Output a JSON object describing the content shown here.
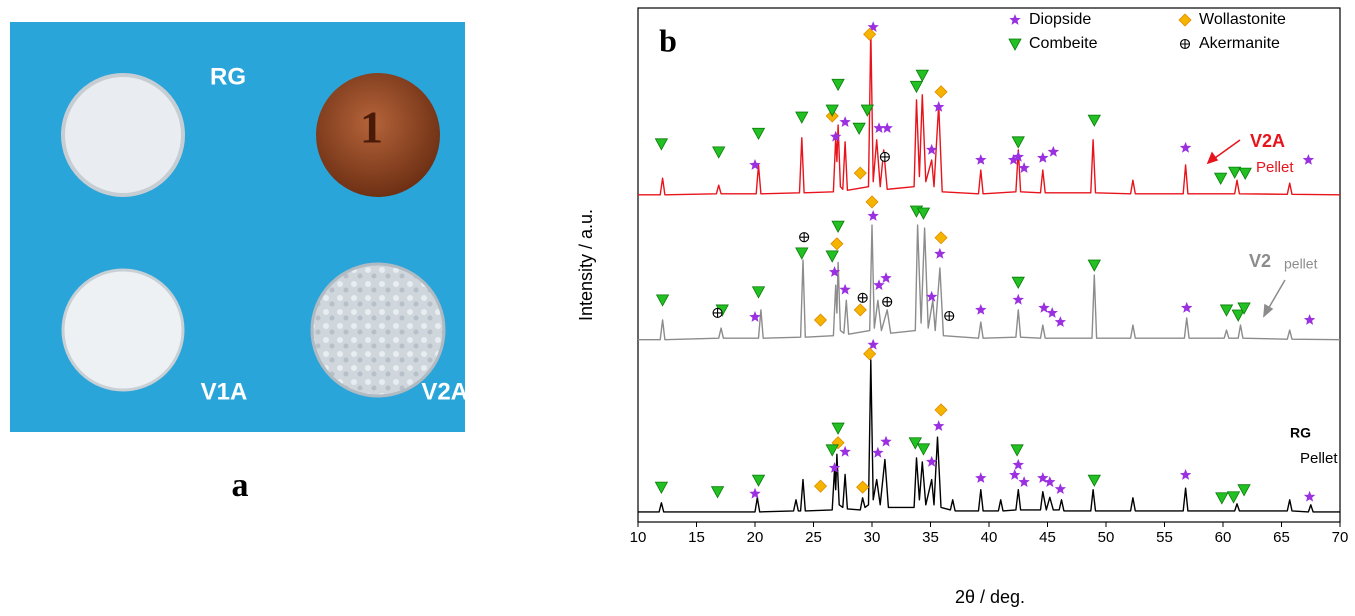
{
  "panel_a": {
    "label": "a",
    "photo_labels": [
      "RG",
      "V1A",
      "V2A"
    ]
  },
  "chart_data": {
    "type": "line",
    "panel_label": "b",
    "xlabel": "2θ / deg.",
    "ylabel": "Intensity / a.u.",
    "xlim": [
      10,
      70
    ],
    "xticks": [
      10,
      15,
      20,
      25,
      30,
      35,
      40,
      45,
      50,
      55,
      60,
      65,
      70
    ],
    "ylim": [
      -1.4,
      100.4
    ],
    "legend": "top right",
    "traces": [
      {
        "label": "V2A",
        "sublabel": "Pellet",
        "color": "#e8141c",
        "x": [
          10,
          11.9,
          12.1,
          12.3,
          16.7,
          16.9,
          17.1,
          20.1,
          20.3,
          20.5,
          23.8,
          24.0,
          24.2,
          26.7,
          26.9,
          27.0,
          27.1,
          27.3,
          27.5,
          27.7,
          27.9,
          29.7,
          29.9,
          30.1,
          30.4,
          30.7,
          31.0,
          31.3,
          33.6,
          33.8,
          34.05,
          34.3,
          34.6,
          35.1,
          35.3,
          35.7,
          36.0,
          39.1,
          39.3,
          39.5,
          42.3,
          42.5,
          42.7,
          44.4,
          44.6,
          44.8,
          48.7,
          48.9,
          49.1,
          52.1,
          52.3,
          52.5,
          56.6,
          56.8,
          57.0,
          61.0,
          61.2,
          61.4,
          65.5,
          65.7,
          65.9,
          70
        ],
        "values": [
          63.4,
          63.4,
          66.7,
          63.4,
          63.6,
          65.3,
          63.6,
          63.6,
          69.3,
          63.6,
          63.8,
          74.7,
          63.8,
          64,
          74.7,
          70,
          77.2,
          65,
          64.5,
          73.9,
          64.3,
          65,
          96,
          66,
          74.3,
          65,
          72.3,
          64.5,
          65,
          82.2,
          67,
          83.2,
          66,
          70.3,
          65,
          81.2,
          64,
          63.6,
          68.3,
          63.6,
          64,
          72.3,
          64,
          63.8,
          68.3,
          63.8,
          63.8,
          74.3,
          63.8,
          63.6,
          66.3,
          63.6,
          63.6,
          69.3,
          63.6,
          63.6,
          66.3,
          63.6,
          63.5,
          65.7,
          63.5,
          63.4
        ]
      },
      {
        "label": "V2",
        "sublabel": "pellet",
        "color": "#8c8c8c",
        "x": [
          10,
          11.9,
          12.1,
          12.3,
          16.9,
          17.1,
          17.3,
          20.3,
          20.5,
          20.7,
          23.9,
          24.1,
          24.3,
          26.7,
          26.9,
          27.0,
          27.1,
          27.3,
          27.6,
          27.8,
          28.0,
          29.8,
          30.0,
          30.2,
          30.5,
          30.8,
          31.3,
          31.6,
          33.7,
          33.9,
          34.2,
          34.5,
          34.8,
          35.2,
          35.4,
          35.8,
          36.1,
          39.1,
          39.3,
          39.5,
          42.3,
          42.5,
          42.7,
          44.4,
          44.6,
          44.8,
          48.8,
          49.0,
          49.2,
          52.1,
          52.3,
          52.5,
          56.7,
          56.9,
          57.1,
          60.1,
          60.3,
          60.5,
          61.3,
          61.5,
          61.7,
          65.5,
          65.7,
          65.9,
          70
        ],
        "values": [
          34.7,
          34.7,
          38.6,
          34.7,
          35,
          37,
          35,
          35,
          40.6,
          35,
          35.2,
          50.5,
          35.2,
          35.5,
          45.5,
          40,
          50,
          36.5,
          36,
          42.5,
          35.8,
          36.5,
          57.4,
          37,
          42.5,
          36.5,
          40.6,
          36,
          36.5,
          57.4,
          38,
          56.8,
          37,
          42.5,
          36.5,
          48.9,
          35.5,
          35,
          38.2,
          35,
          35.2,
          40.6,
          35.2,
          35,
          37.6,
          35,
          35,
          47.5,
          35,
          35,
          37.6,
          35,
          35,
          39,
          35,
          35,
          36.6,
          35,
          35,
          37.6,
          35,
          34.8,
          36.6,
          34.8,
          34.7
        ]
      },
      {
        "label": "RG",
        "sublabel": "Pellet",
        "color": "#000000",
        "x": [
          10,
          11.8,
          12,
          12.2,
          20,
          20.2,
          20.4,
          23.3,
          23.5,
          23.7,
          23.9,
          24.1,
          24.3,
          26.6,
          26.8,
          26.9,
          27.0,
          27.2,
          27.5,
          27.7,
          27.9,
          29.0,
          29.2,
          29.4,
          29.7,
          29.9,
          30.1,
          30.4,
          30.7,
          31.1,
          31.4,
          33.6,
          33.8,
          34.05,
          34.3,
          34.6,
          35.1,
          35.3,
          35.6,
          35.9,
          36.7,
          36.9,
          37.1,
          39.1,
          39.3,
          39.5,
          40.8,
          41.0,
          41.2,
          42.3,
          42.5,
          42.7,
          44.4,
          44.6,
          44.9,
          45.2,
          45.5,
          46.0,
          46.2,
          46.4,
          48.7,
          48.9,
          49.1,
          52.1,
          52.3,
          52.5,
          56.6,
          56.8,
          57.0,
          61.0,
          61.2,
          61.4,
          65.5,
          65.7,
          65.9,
          67.3,
          67.5,
          67.7,
          70
        ],
        "values": [
          0.6,
          0.6,
          2.4,
          0.6,
          0.6,
          3.4,
          0.6,
          0.8,
          3,
          0.8,
          0.8,
          7,
          0.8,
          1,
          9.3,
          5,
          12,
          2,
          1.5,
          8,
          1.2,
          1,
          3.4,
          1.5,
          2,
          30.7,
          3,
          7,
          2,
          11,
          1.5,
          1.5,
          11.3,
          3,
          10.5,
          2,
          7,
          2,
          15.4,
          1.5,
          1,
          3,
          0.8,
          0.8,
          5,
          0.8,
          0.8,
          3,
          0.8,
          1,
          5,
          1,
          1,
          4.6,
          1,
          3.5,
          1,
          1,
          3,
          0.8,
          0.8,
          5,
          0.8,
          0.8,
          3.4,
          0.8,
          0.8,
          5.3,
          0.8,
          0.8,
          2.2,
          0.8,
          0.8,
          3,
          0.8,
          0.6,
          2,
          0.6,
          0.6
        ]
      }
    ],
    "series": [
      {
        "name": "Diopside",
        "marker": "star",
        "color": "#9b30e0",
        "x": [
          20,
          26.9,
          27.7,
          30.1,
          30.6,
          31.3,
          35.1,
          35.7,
          39.3,
          42.1,
          42.5,
          43,
          44.6,
          45.5,
          56.8,
          67.3,
          20,
          26.8,
          27.7,
          30.1,
          30.6,
          31.2,
          35.1,
          35.8,
          39.3,
          42.5,
          44.7,
          45.4,
          46.1,
          56.9,
          67.4,
          20,
          26.8,
          27.7,
          30.1,
          30.5,
          31.2,
          35.1,
          35.7,
          39.3,
          42.2,
          42.5,
          43,
          44.6,
          45.2,
          46.1,
          56.8,
          67.4
        ],
        "values": [
          69.3,
          74.9,
          77.8,
          96.6,
          76.6,
          76.6,
          72.3,
          80.8,
          70.3,
          70.3,
          70.9,
          68.7,
          70.7,
          71.9,
          72.7,
          70.3,
          39.2,
          48.1,
          44.6,
          59.2,
          45.5,
          46.9,
          43.2,
          51.7,
          40.6,
          42.6,
          41,
          40,
          38.2,
          41,
          38.6,
          4.2,
          9.3,
          12.5,
          33.7,
          12.3,
          14.5,
          10.5,
          17.6,
          7.3,
          7.9,
          9.9,
          6.5,
          7.3,
          6.5,
          5.1,
          7.9,
          3.6
        ]
      },
      {
        "name": "Wollastonite",
        "marker": "diamond",
        "color": "#f5b400",
        "x": [
          26.6,
          29,
          29.8,
          35.9,
          25.6,
          27,
          29,
          30,
          35.9,
          25.6,
          27.1,
          29.2,
          29.8,
          35.9
        ],
        "values": [
          79,
          67.7,
          95.2,
          83.8,
          38.6,
          53.7,
          40.6,
          62,
          54.9,
          5.7,
          14.3,
          5.5,
          31.9,
          20.8
        ]
      },
      {
        "name": "Combeite",
        "marker": "triangle",
        "color": "#22c022",
        "x": [
          12,
          16.9,
          20.3,
          24,
          26.6,
          27.1,
          28.9,
          29.6,
          33.8,
          34.3,
          42.5,
          49,
          59.8,
          61,
          61.9,
          12.1,
          17.2,
          20.3,
          24,
          26.6,
          27.1,
          33.8,
          34.4,
          42.5,
          49,
          60.3,
          61.3,
          61.8,
          12,
          16.8,
          20.3,
          26.6,
          27.1,
          33.7,
          34.4,
          42.4,
          49,
          59.9,
          60.9,
          61.8
        ],
        "values": [
          73.5,
          71.9,
          75.6,
          78.8,
          80.2,
          85.3,
          76.6,
          80.2,
          84.9,
          87.1,
          73.9,
          78.2,
          66.7,
          67.9,
          67.7,
          42.6,
          40.6,
          44.2,
          51.9,
          51.3,
          57.2,
          60.2,
          59.8,
          46.1,
          49.5,
          40.6,
          39.6,
          41,
          5.5,
          4.6,
          6.9,
          12.9,
          17.2,
          14.3,
          13.1,
          12.9,
          6.9,
          3.4,
          3.6,
          5
        ]
      },
      {
        "name": "Akermanite",
        "marker": "circle-plus",
        "color": "#000000",
        "x": [
          31.1,
          16.8,
          24.2,
          29.2,
          31.3,
          36.6
        ],
        "values": [
          70.9,
          40,
          55,
          43,
          42.2,
          39.4
        ]
      }
    ]
  }
}
